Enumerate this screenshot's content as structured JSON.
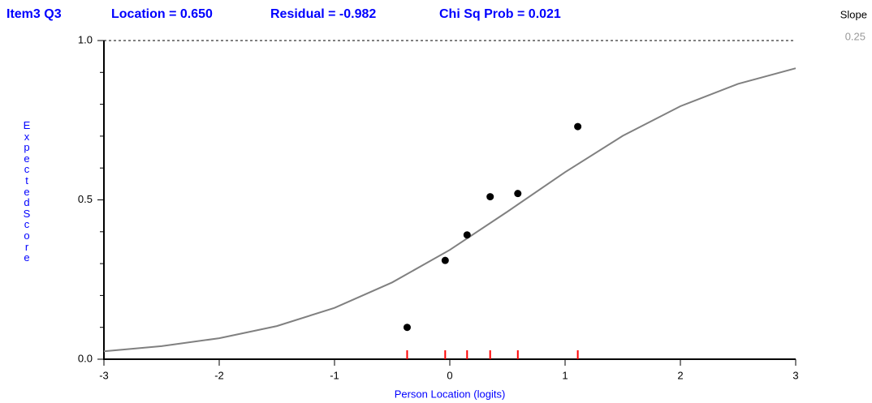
{
  "header": {
    "item": "Item3  Q3",
    "location": "Location = 0.650",
    "residual": "Residual = -0.982",
    "chisq": "Chi Sq Prob = 0.021"
  },
  "slope": {
    "label": "Slope",
    "value": "0.25"
  },
  "chart_data": {
    "type": "scatter",
    "xlabel": "Person Location (logits)",
    "ylabel": "Expected Score",
    "xlim": [
      -3,
      3
    ],
    "ylim": [
      0,
      1
    ],
    "xticks": [
      -3,
      -2,
      -1,
      0,
      1,
      2,
      3
    ],
    "yticks": [
      {
        "value": 0,
        "label": "0.0"
      },
      {
        "value": 0.5,
        "label": "0.5"
      },
      {
        "value": 1,
        "label": "1.0"
      }
    ],
    "yminor_ticks": [
      0.1,
      0.2,
      0.3,
      0.4,
      0.6,
      0.7,
      0.8,
      0.9
    ],
    "curve": {
      "color": "#808080",
      "x": [
        -3,
        -2.5,
        -2,
        -1.5,
        -1,
        -0.5,
        0,
        0.5,
        1,
        1.5,
        2,
        2.5,
        3
      ],
      "values": [
        0.025,
        0.041,
        0.066,
        0.104,
        0.161,
        0.241,
        0.343,
        0.463,
        0.587,
        0.701,
        0.794,
        0.864,
        0.913
      ]
    },
    "points": {
      "color": "#000000",
      "x": [
        -0.37,
        -0.04,
        0.15,
        0.35,
        0.59,
        1.11
      ],
      "values": [
        0.1,
        0.31,
        0.39,
        0.51,
        0.52,
        0.73
      ]
    },
    "class_tick_color": "#ff0000"
  }
}
